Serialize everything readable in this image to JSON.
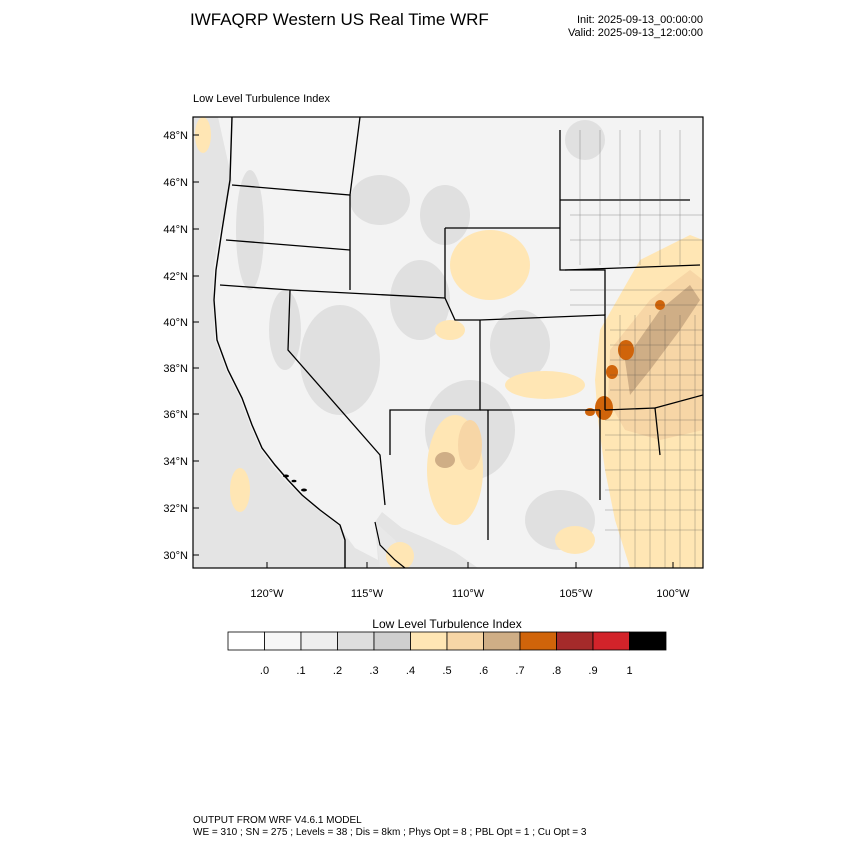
{
  "header": {
    "title": "IWFAQRP Western US Real Time WRF",
    "init": "Init: 2025-09-13_00:00:00",
    "valid": "Valid: 2025-09-13_12:00:00"
  },
  "plot": {
    "label": "Low Level Turbulence Index",
    "lat_labels": [
      "48°N",
      "46°N",
      "44°N",
      "42°N",
      "40°N",
      "38°N",
      "36°N",
      "34°N",
      "32°N",
      "30°N"
    ],
    "lon_labels": [
      "120°W",
      "115°W",
      "110°W",
      "105°W",
      "100°W"
    ]
  },
  "colorbar": {
    "title": "Low Level Turbulence Index",
    "tick_labels": [
      ".0",
      ".1",
      ".2",
      ".3",
      ".4",
      ".5",
      ".6",
      ".7",
      ".8",
      ".9",
      "1"
    ],
    "colors": [
      "#ffffff",
      "#f7f7f7",
      "#eeeeee",
      "#dedede",
      "#cfcfcf",
      "#ffe6b4",
      "#f7d6a6",
      "#cfae86",
      "#d0640a",
      "#a52a2a",
      "#d2232a",
      "#000000"
    ]
  },
  "footer": {
    "line1": "OUTPUT FROM WRF V4.6.1 MODEL",
    "line2": "WE = 310 ; SN = 275 ; Levels = 38 ; Dis = 8km ; Phys Opt = 8 ; PBL Opt = 1 ; Cu Opt = 3"
  }
}
